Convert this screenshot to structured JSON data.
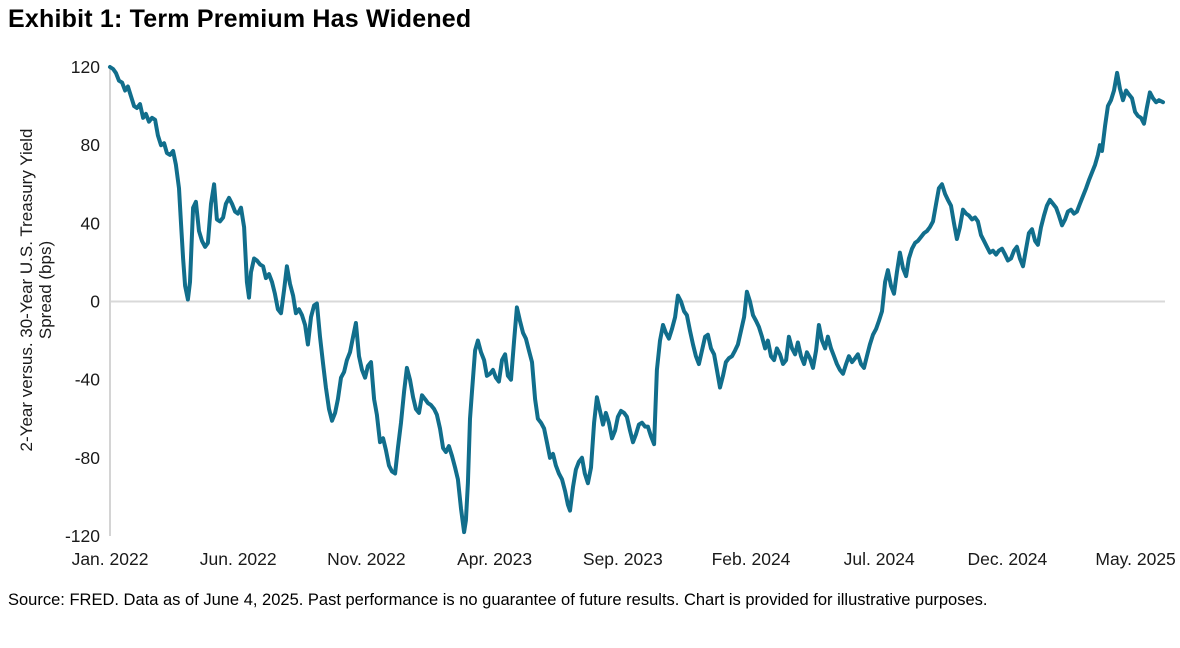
{
  "title": "Exhibit 1: Term Premium Has Widened",
  "source_note": "Source: FRED. Data as of June 4, 2025. Past performance is no guarantee of future results. Chart is provided for illustrative purposes.",
  "chart_data": {
    "type": "line",
    "title": "Exhibit 1: Term Premium Has Widened",
    "ylabel_line1": "2-Year versus. 30-Year U.S. Treasury Yield",
    "ylabel_line2": "Spread (bps)",
    "xlabel": "",
    "x_unit": "months since Jan 2022",
    "xtick_labels": [
      "Jan. 2022",
      "Jun. 2022",
      "Nov. 2022",
      "Apr. 2023",
      "Sep. 2023",
      "Feb. 2024",
      "Jul. 2024",
      "Dec. 2024",
      "May. 2025"
    ],
    "xtick_months": [
      0,
      5,
      10,
      15,
      20,
      25,
      30,
      35,
      40
    ],
    "yticks": [
      120,
      80,
      40,
      0,
      -40,
      -80,
      -120
    ],
    "ylim": [
      -120,
      120
    ],
    "xlim": [
      0,
      41.07
    ],
    "grid": "zero-line-only",
    "legend": "none",
    "line_color": "#116E8C",
    "zero_line_color": "#D9D9D9",
    "axis_line_color": "#D4D4D4",
    "tick_label_color": "#1a1a1a",
    "points": [
      [
        0,
        120
      ],
      [
        0.12,
        119
      ],
      [
        0.23,
        117
      ],
      [
        0.35,
        113
      ],
      [
        0.47,
        112
      ],
      [
        0.59,
        108
      ],
      [
        0.7,
        110
      ],
      [
        0.82,
        105
      ],
      [
        0.94,
        100
      ],
      [
        1.05,
        99
      ],
      [
        1.17,
        101
      ],
      [
        1.29,
        94
      ],
      [
        1.4,
        96
      ],
      [
        1.52,
        92
      ],
      [
        1.64,
        94
      ],
      [
        1.76,
        93
      ],
      [
        1.87,
        85
      ],
      [
        1.99,
        80
      ],
      [
        2.11,
        81
      ],
      [
        2.22,
        76
      ],
      [
        2.34,
        75
      ],
      [
        2.46,
        77
      ],
      [
        2.57,
        70
      ],
      [
        2.69,
        58
      ],
      [
        2.77,
        40
      ],
      [
        2.85,
        22
      ],
      [
        2.93,
        8
      ],
      [
        3.04,
        1
      ],
      [
        3.12,
        10
      ],
      [
        3.24,
        48
      ],
      [
        3.35,
        51
      ],
      [
        3.47,
        36
      ],
      [
        3.59,
        31
      ],
      [
        3.71,
        28
      ],
      [
        3.82,
        30
      ],
      [
        3.94,
        50
      ],
      [
        4.06,
        60
      ],
      [
        4.17,
        42
      ],
      [
        4.29,
        41
      ],
      [
        4.41,
        43
      ],
      [
        4.52,
        50
      ],
      [
        4.64,
        53
      ],
      [
        4.76,
        50
      ],
      [
        4.88,
        46
      ],
      [
        4.99,
        45
      ],
      [
        5.11,
        48
      ],
      [
        5.23,
        38
      ],
      [
        5.34,
        10
      ],
      [
        5.42,
        2
      ],
      [
        5.5,
        15
      ],
      [
        5.62,
        22
      ],
      [
        5.73,
        21
      ],
      [
        5.85,
        19
      ],
      [
        5.97,
        18
      ],
      [
        6.08,
        12
      ],
      [
        6.2,
        14
      ],
      [
        6.32,
        10
      ],
      [
        6.43,
        4
      ],
      [
        6.55,
        -4
      ],
      [
        6.67,
        -6
      ],
      [
        6.79,
        6
      ],
      [
        6.9,
        18
      ],
      [
        7.02,
        9
      ],
      [
        7.14,
        3
      ],
      [
        7.25,
        -6
      ],
      [
        7.37,
        -4
      ],
      [
        7.49,
        -7
      ],
      [
        7.61,
        -12
      ],
      [
        7.72,
        -22
      ],
      [
        7.84,
        -8
      ],
      [
        7.96,
        -2
      ],
      [
        8.07,
        -1
      ],
      [
        8.19,
        -18
      ],
      [
        8.31,
        -32
      ],
      [
        8.42,
        -44
      ],
      [
        8.54,
        -55
      ],
      [
        8.66,
        -61
      ],
      [
        8.78,
        -57
      ],
      [
        8.89,
        -50
      ],
      [
        9.01,
        -39
      ],
      [
        9.13,
        -36
      ],
      [
        9.24,
        -30
      ],
      [
        9.36,
        -26
      ],
      [
        9.48,
        -18
      ],
      [
        9.59,
        -11
      ],
      [
        9.71,
        -28
      ],
      [
        9.83,
        -35
      ],
      [
        9.95,
        -39
      ],
      [
        10.06,
        -33
      ],
      [
        10.18,
        -31
      ],
      [
        10.3,
        -50
      ],
      [
        10.41,
        -58
      ],
      [
        10.53,
        -72
      ],
      [
        10.65,
        -70
      ],
      [
        10.76,
        -76
      ],
      [
        10.88,
        -84
      ],
      [
        11.0,
        -87
      ],
      [
        11.12,
        -88
      ],
      [
        11.23,
        -75
      ],
      [
        11.35,
        -62
      ],
      [
        11.47,
        -46
      ],
      [
        11.58,
        -34
      ],
      [
        11.7,
        -40
      ],
      [
        11.82,
        -49
      ],
      [
        11.93,
        -55
      ],
      [
        12.05,
        -57
      ],
      [
        12.17,
        -48
      ],
      [
        12.29,
        -50
      ],
      [
        12.4,
        -52
      ],
      [
        12.52,
        -53
      ],
      [
        12.64,
        -55
      ],
      [
        12.75,
        -58
      ],
      [
        12.87,
        -65
      ],
      [
        12.99,
        -75
      ],
      [
        13.1,
        -77
      ],
      [
        13.22,
        -74
      ],
      [
        13.34,
        -79
      ],
      [
        13.46,
        -85
      ],
      [
        13.57,
        -91
      ],
      [
        13.69,
        -106
      ],
      [
        13.81,
        -118
      ],
      [
        13.88,
        -112
      ],
      [
        13.96,
        -93
      ],
      [
        14.04,
        -60
      ],
      [
        14.12,
        -46
      ],
      [
        14.24,
        -25
      ],
      [
        14.35,
        -20
      ],
      [
        14.47,
        -26
      ],
      [
        14.59,
        -30
      ],
      [
        14.7,
        -38
      ],
      [
        14.82,
        -37
      ],
      [
        14.94,
        -35
      ],
      [
        15.05,
        -39
      ],
      [
        15.17,
        -41
      ],
      [
        15.29,
        -30
      ],
      [
        15.41,
        -27
      ],
      [
        15.52,
        -38
      ],
      [
        15.64,
        -40
      ],
      [
        15.76,
        -20
      ],
      [
        15.87,
        -3
      ],
      [
        15.99,
        -10
      ],
      [
        16.11,
        -16
      ],
      [
        16.22,
        -19
      ],
      [
        16.34,
        -25
      ],
      [
        16.46,
        -31
      ],
      [
        16.58,
        -50
      ],
      [
        16.69,
        -60
      ],
      [
        16.81,
        -62
      ],
      [
        16.93,
        -65
      ],
      [
        17.04,
        -72
      ],
      [
        17.16,
        -80
      ],
      [
        17.28,
        -78
      ],
      [
        17.39,
        -84
      ],
      [
        17.51,
        -88
      ],
      [
        17.63,
        -91
      ],
      [
        17.75,
        -97
      ],
      [
        17.86,
        -104
      ],
      [
        17.94,
        -107
      ],
      [
        18.06,
        -95
      ],
      [
        18.17,
        -86
      ],
      [
        18.29,
        -82
      ],
      [
        18.41,
        -80
      ],
      [
        18.52,
        -88
      ],
      [
        18.64,
        -93
      ],
      [
        18.76,
        -85
      ],
      [
        18.88,
        -62
      ],
      [
        18.99,
        -49
      ],
      [
        19.11,
        -56
      ],
      [
        19.23,
        -63
      ],
      [
        19.34,
        -57
      ],
      [
        19.46,
        -62
      ],
      [
        19.58,
        -70
      ],
      [
        19.7,
        -66
      ],
      [
        19.81,
        -59
      ],
      [
        19.93,
        -56
      ],
      [
        20.05,
        -57
      ],
      [
        20.16,
        -59
      ],
      [
        20.28,
        -66
      ],
      [
        20.4,
        -72
      ],
      [
        20.51,
        -68
      ],
      [
        20.63,
        -63
      ],
      [
        20.75,
        -62
      ],
      [
        20.87,
        -64
      ],
      [
        20.98,
        -64
      ],
      [
        21.1,
        -69
      ],
      [
        21.22,
        -73
      ],
      [
        21.33,
        -35
      ],
      [
        21.45,
        -20
      ],
      [
        21.57,
        -12
      ],
      [
        21.68,
        -16
      ],
      [
        21.8,
        -19
      ],
      [
        21.92,
        -14
      ],
      [
        22.04,
        -8
      ],
      [
        22.15,
        3
      ],
      [
        22.27,
        0
      ],
      [
        22.39,
        -5
      ],
      [
        22.5,
        -7
      ],
      [
        22.62,
        -15
      ],
      [
        22.74,
        -22
      ],
      [
        22.85,
        -28
      ],
      [
        22.97,
        -32
      ],
      [
        23.09,
        -25
      ],
      [
        23.21,
        -18
      ],
      [
        23.32,
        -17
      ],
      [
        23.44,
        -24
      ],
      [
        23.56,
        -27
      ],
      [
        23.67,
        -35
      ],
      [
        23.79,
        -44
      ],
      [
        23.91,
        -38
      ],
      [
        24.02,
        -31
      ],
      [
        24.14,
        -29
      ],
      [
        24.26,
        -28
      ],
      [
        24.38,
        -25
      ],
      [
        24.49,
        -22
      ],
      [
        24.61,
        -15
      ],
      [
        24.73,
        -8
      ],
      [
        24.84,
        5
      ],
      [
        24.96,
        0
      ],
      [
        25.08,
        -7
      ],
      [
        25.2,
        -10
      ],
      [
        25.31,
        -13
      ],
      [
        25.43,
        -18
      ],
      [
        25.55,
        -24
      ],
      [
        25.66,
        -20
      ],
      [
        25.78,
        -28
      ],
      [
        25.9,
        -30
      ],
      [
        26.01,
        -24
      ],
      [
        26.13,
        -27
      ],
      [
        26.25,
        -32
      ],
      [
        26.37,
        -30
      ],
      [
        26.48,
        -18
      ],
      [
        26.6,
        -24
      ],
      [
        26.72,
        -27
      ],
      [
        26.83,
        -21
      ],
      [
        26.95,
        -28
      ],
      [
        27.07,
        -32
      ],
      [
        27.18,
        -26
      ],
      [
        27.3,
        -29
      ],
      [
        27.42,
        -34
      ],
      [
        27.54,
        -25
      ],
      [
        27.65,
        -12
      ],
      [
        27.77,
        -20
      ],
      [
        27.89,
        -24
      ],
      [
        28.0,
        -18
      ],
      [
        28.12,
        -24
      ],
      [
        28.24,
        -28
      ],
      [
        28.35,
        -32
      ],
      [
        28.47,
        -35
      ],
      [
        28.59,
        -37
      ],
      [
        28.71,
        -32
      ],
      [
        28.82,
        -28
      ],
      [
        28.94,
        -31
      ],
      [
        29.06,
        -29
      ],
      [
        29.17,
        -27
      ],
      [
        29.29,
        -32
      ],
      [
        29.41,
        -34
      ],
      [
        29.52,
        -28
      ],
      [
        29.64,
        -22
      ],
      [
        29.76,
        -17
      ],
      [
        29.88,
        -14
      ],
      [
        29.99,
        -10
      ],
      [
        30.11,
        -5
      ],
      [
        30.23,
        10
      ],
      [
        30.34,
        16
      ],
      [
        30.46,
        8
      ],
      [
        30.58,
        4
      ],
      [
        30.69,
        15
      ],
      [
        30.81,
        25
      ],
      [
        30.93,
        17
      ],
      [
        31.05,
        13
      ],
      [
        31.16,
        22
      ],
      [
        31.28,
        27
      ],
      [
        31.4,
        30
      ],
      [
        31.51,
        31
      ],
      [
        31.63,
        33
      ],
      [
        31.75,
        35
      ],
      [
        31.86,
        36
      ],
      [
        31.98,
        38
      ],
      [
        32.1,
        41
      ],
      [
        32.22,
        50
      ],
      [
        32.33,
        58
      ],
      [
        32.45,
        60
      ],
      [
        32.57,
        55
      ],
      [
        32.68,
        52
      ],
      [
        32.8,
        49
      ],
      [
        32.92,
        40
      ],
      [
        33.03,
        32
      ],
      [
        33.15,
        38
      ],
      [
        33.27,
        47
      ],
      [
        33.39,
        45
      ],
      [
        33.5,
        44
      ],
      [
        33.62,
        42
      ],
      [
        33.74,
        43
      ],
      [
        33.85,
        41
      ],
      [
        33.97,
        34
      ],
      [
        34.09,
        31
      ],
      [
        34.2,
        28
      ],
      [
        34.32,
        25
      ],
      [
        34.44,
        26
      ],
      [
        34.56,
        24
      ],
      [
        34.67,
        26
      ],
      [
        34.79,
        27
      ],
      [
        34.91,
        24
      ],
      [
        35.02,
        21
      ],
      [
        35.14,
        22
      ],
      [
        35.26,
        26
      ],
      [
        35.37,
        28
      ],
      [
        35.49,
        22
      ],
      [
        35.61,
        18
      ],
      [
        35.73,
        27
      ],
      [
        35.84,
        35
      ],
      [
        35.96,
        37
      ],
      [
        36.08,
        31
      ],
      [
        36.19,
        29
      ],
      [
        36.31,
        38
      ],
      [
        36.43,
        44
      ],
      [
        36.54,
        49
      ],
      [
        36.66,
        52
      ],
      [
        36.78,
        50
      ],
      [
        36.9,
        48
      ],
      [
        37.01,
        44
      ],
      [
        37.13,
        39
      ],
      [
        37.25,
        42
      ],
      [
        37.36,
        46
      ],
      [
        37.48,
        47
      ],
      [
        37.6,
        45
      ],
      [
        37.71,
        46
      ],
      [
        37.83,
        50
      ],
      [
        37.95,
        54
      ],
      [
        38.07,
        58
      ],
      [
        38.18,
        62
      ],
      [
        38.3,
        66
      ],
      [
        38.42,
        70
      ],
      [
        38.53,
        75
      ],
      [
        38.61,
        80
      ],
      [
        38.69,
        77
      ],
      [
        38.81,
        90
      ],
      [
        38.92,
        100
      ],
      [
        39.04,
        103
      ],
      [
        39.16,
        108
      ],
      [
        39.28,
        117
      ],
      [
        39.39,
        109
      ],
      [
        39.51,
        103
      ],
      [
        39.63,
        108
      ],
      [
        39.74,
        106
      ],
      [
        39.86,
        104
      ],
      [
        39.98,
        97
      ],
      [
        40.09,
        95
      ],
      [
        40.21,
        94
      ],
      [
        40.33,
        91
      ],
      [
        40.44,
        99
      ],
      [
        40.56,
        107
      ],
      [
        40.68,
        104
      ],
      [
        40.8,
        102
      ],
      [
        40.91,
        103
      ],
      [
        41.07,
        102
      ]
    ]
  }
}
